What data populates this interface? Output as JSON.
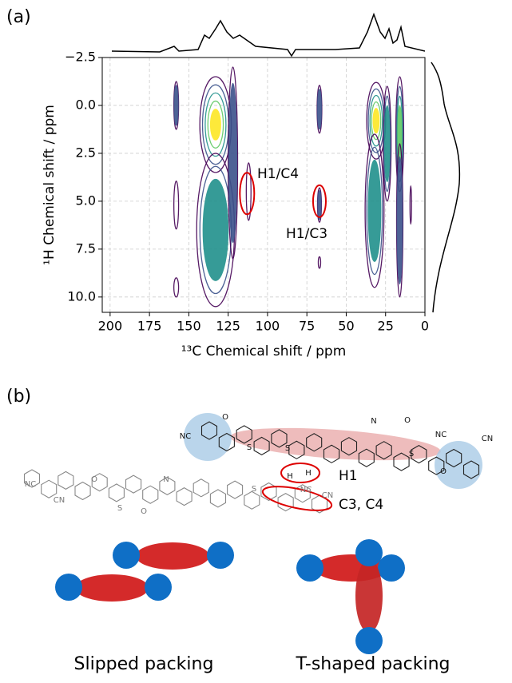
{
  "panel_a_label": "(a)",
  "panel_b_label": "(b)",
  "chart_data": {
    "type": "contour",
    "xlabel": "¹³C Chemical shift / ppm",
    "ylabel": "¹H Chemical shift / ppm",
    "xlim": [
      205,
      0
    ],
    "ylim": [
      -2.5,
      10.8
    ],
    "xticks": [
      200,
      175,
      150,
      125,
      100,
      75,
      50,
      25,
      0
    ],
    "yticks": [
      {
        "value": -2.5,
        "label": "−2.5"
      },
      {
        "value": 0,
        "label": "0.0"
      },
      2.5,
      {
        "value": 5,
        "label": "5.0"
      },
      7.5,
      {
        "value": 10,
        "label": "10.0"
      }
    ],
    "grid": true,
    "peaks": {
      "x": [
        158,
        158,
        158,
        133,
        133,
        122,
        112,
        67,
        67,
        67,
        31,
        32,
        24,
        16,
        16,
        9
      ],
      "y": [
        0,
        5.2,
        9.5,
        1,
        6.5,
        3,
        4.5,
        0.2,
        5.2,
        8.2,
        0.8,
        5.5,
        2,
        1.5,
        6,
        5.2
      ],
      "xspan": [
        3,
        3,
        3,
        20,
        24,
        6,
        3,
        3,
        2.5,
        1.5,
        12,
        12,
        5,
        5,
        4,
        1
      ],
      "yspan": [
        2.5,
        2.5,
        1,
        5,
        8,
        10,
        3,
        2.5,
        1.8,
        0.6,
        4,
        8,
        6,
        6,
        8,
        2
      ],
      "intensity": [
        2,
        1,
        1,
        5,
        3,
        2,
        1,
        2,
        2,
        1,
        5,
        3,
        3,
        4,
        2,
        1
      ]
    },
    "annotations": [
      "H1/C4",
      "H1/C3"
    ]
  },
  "structure": {
    "labels": [
      "H1",
      "C3, C4"
    ],
    "atoms": [
      "NC",
      "O",
      "N",
      "O",
      "S",
      "S",
      "S",
      "NC",
      "CN",
      "O",
      "H",
      "H",
      "NC",
      "CN",
      "O",
      "N",
      "O",
      "S",
      "S",
      "NC",
      "CN"
    ]
  },
  "packing": {
    "labels": [
      "Slipped packing",
      "T-shaped packing"
    ]
  }
}
